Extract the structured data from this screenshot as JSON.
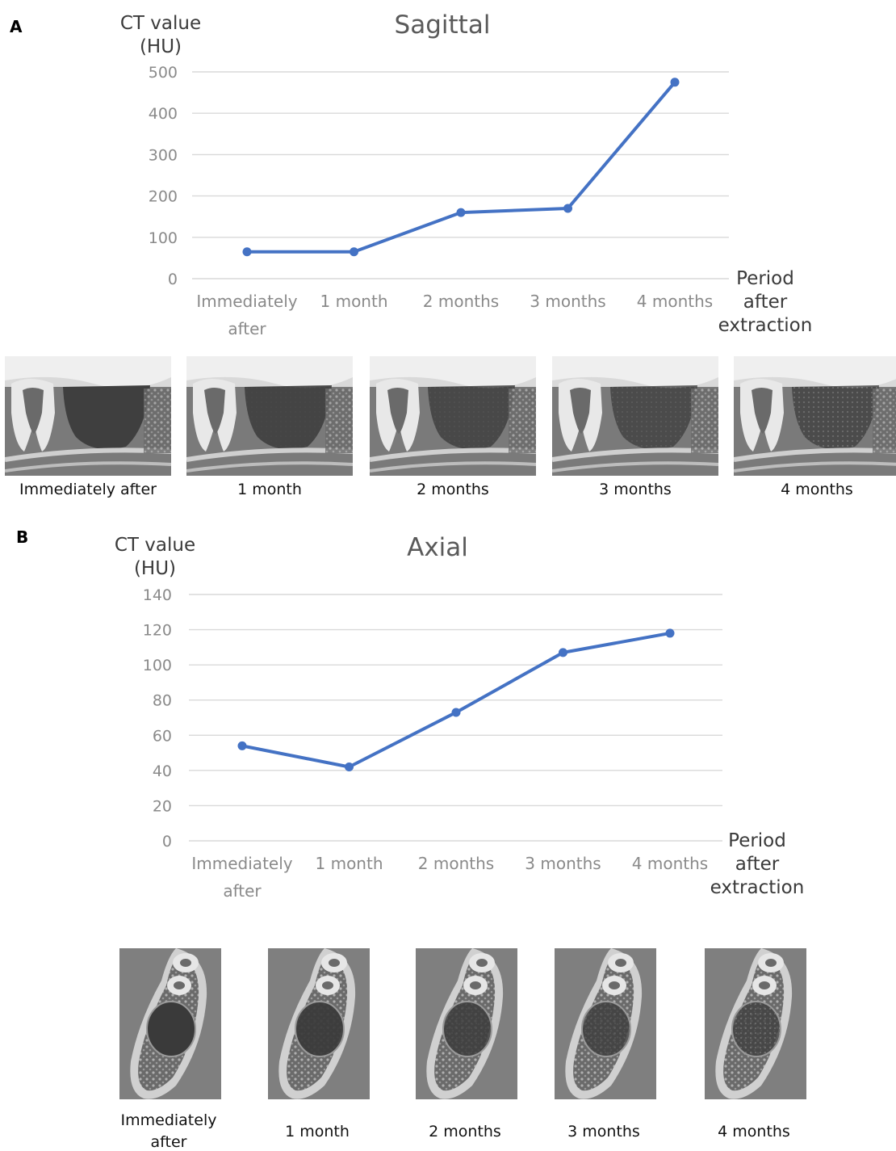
{
  "panels": {
    "a": {
      "letter": "A"
    },
    "b": {
      "letter": "B"
    }
  },
  "chart_data": [
    {
      "type": "line",
      "title": "Sagittal",
      "ylabel_lines": [
        "CT value",
        "(HU)"
      ],
      "xlabel_lines": [
        "Period",
        "after",
        "extraction"
      ],
      "categories": [
        "Immediately after",
        "1 month",
        "2 months",
        "3 months",
        "4 months"
      ],
      "category_lines": [
        [
          "Immediately",
          "after"
        ],
        [
          "1 month"
        ],
        [
          "2 months"
        ],
        [
          "3 months"
        ],
        [
          "4 months"
        ]
      ],
      "values": [
        65,
        65,
        160,
        170,
        475
      ],
      "ylim": [
        0,
        500
      ],
      "yticks": [
        0,
        100,
        200,
        300,
        400,
        500
      ],
      "grid": true,
      "color": "#4472c4"
    },
    {
      "type": "line",
      "title": "Axial",
      "ylabel_lines": [
        "CT value",
        "(HU)"
      ],
      "xlabel_lines": [
        "Period",
        "after",
        "extraction"
      ],
      "categories": [
        "Immediately after",
        "1 month",
        "2 months",
        "3 months",
        "4 months"
      ],
      "category_lines": [
        [
          "Immediately",
          "after"
        ],
        [
          "1 month"
        ],
        [
          "2 months"
        ],
        [
          "3 months"
        ],
        [
          "4 months"
        ]
      ],
      "values": [
        54,
        42,
        73,
        107,
        118
      ],
      "ylim": [
        0,
        140
      ],
      "yticks": [
        0,
        20,
        40,
        60,
        80,
        100,
        120,
        140
      ],
      "grid": true,
      "color": "#4472c4"
    }
  ],
  "image_strips": {
    "sagittal": {
      "view": "sagittal CT",
      "captions": [
        "Immediately after",
        "1 month",
        "2 months",
        "3 months",
        "4 months"
      ]
    },
    "axial": {
      "view": "axial CT",
      "captions": [
        [
          "Immediately",
          "after"
        ],
        [
          "1 month"
        ],
        [
          "2 months"
        ],
        [
          "3 months"
        ],
        [
          "4 months"
        ]
      ]
    }
  }
}
